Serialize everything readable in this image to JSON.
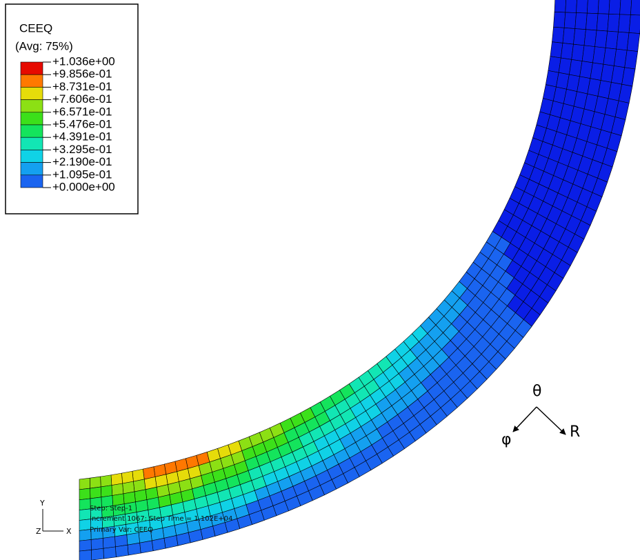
{
  "legend": {
    "title": "CEEQ",
    "subtitle": "(Avg: 75%)",
    "levels": [
      "+1.036e+00",
      "+9.856e-01",
      "+8.731e-01",
      "+7.606e-01",
      "+6.571e-01",
      "+5.476e-01",
      "+4.391e-01",
      "+3.295e-01",
      "+2.190e-01",
      "+1.095e-01",
      "+0.000e+00"
    ]
  },
  "info": [
    "Step: Step-1",
    "Increment 1067: Step Time = 1.102E+04",
    "Primary Var: CEEQ"
  ],
  "triad": {
    "y": "Y",
    "z": "Z",
    "x": "X"
  },
  "annotations": {
    "theta": "θ",
    "phi": "φ",
    "r": "R"
  }
}
